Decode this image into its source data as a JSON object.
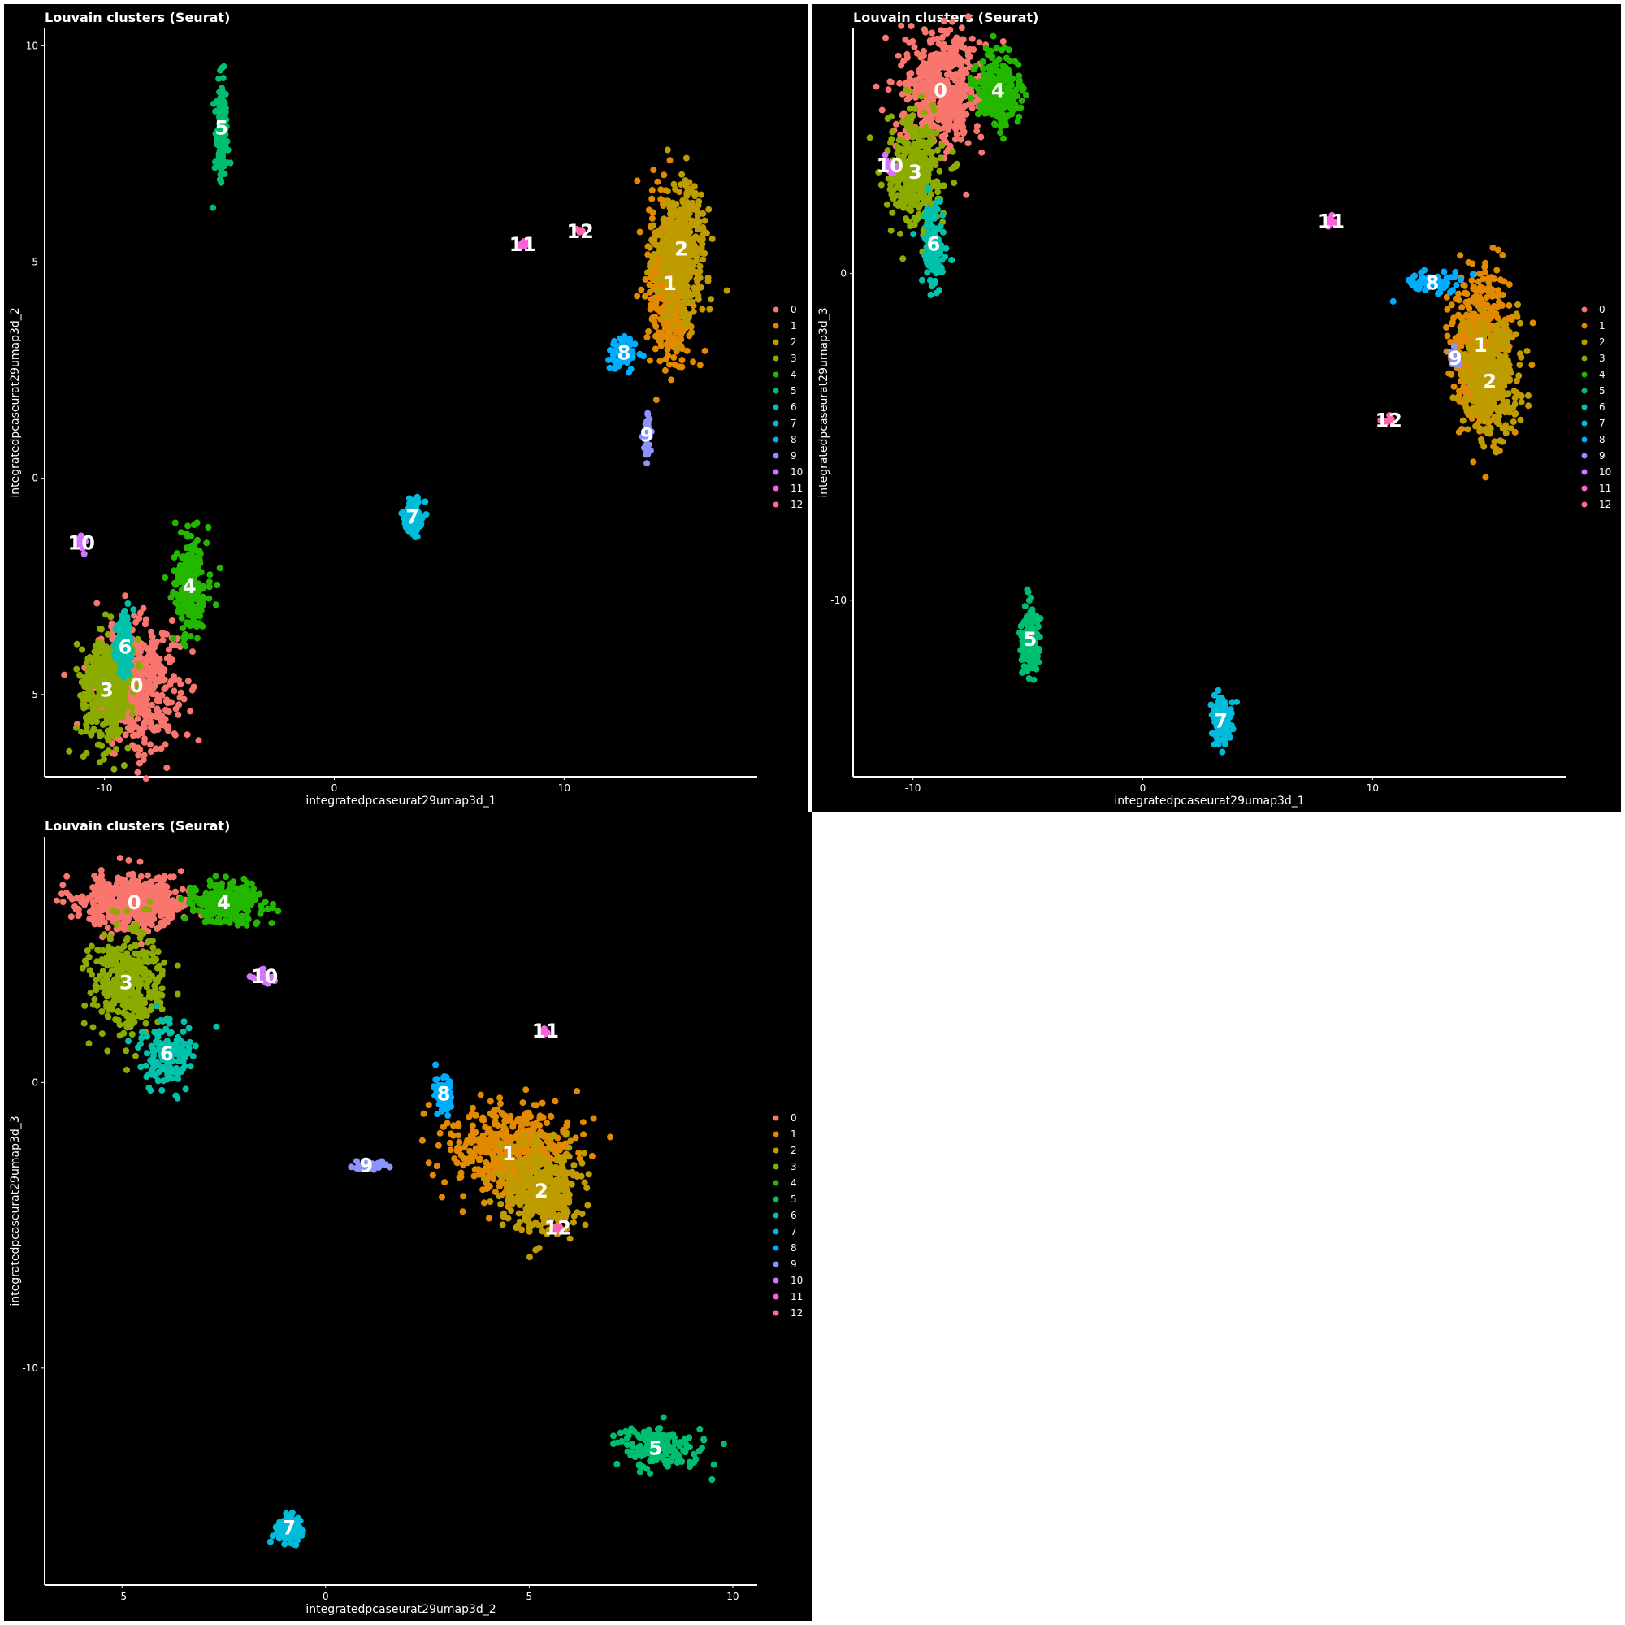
{
  "palette": [
    "#F8766D",
    "#E18A00",
    "#BE9C00",
    "#8CAB00",
    "#24B700",
    "#00BE70",
    "#00C1AB",
    "#00BBDA",
    "#00ACFC",
    "#8B93FF",
    "#D575FE",
    "#F962DD",
    "#FF65AC"
  ],
  "legend": [
    "0",
    "1",
    "2",
    "3",
    "4",
    "5",
    "6",
    "7",
    "8",
    "9",
    "10",
    "11",
    "12"
  ],
  "chart_data": [
    {
      "type": "scatter",
      "title": "Louvain clusters (Seurat)",
      "xlabel": "integratedpcaseurat29umap3d_1",
      "ylabel": "integratedpcaseurat29umap3d_2",
      "xlim": [
        -12.6,
        18.4
      ],
      "ylim": [
        -6.9,
        10.4
      ],
      "xticks": [
        -10,
        0,
        10
      ],
      "xtick_labels": [
        "-10",
        "0",
        "10"
      ],
      "yticks": [
        -5,
        0,
        5,
        10
      ],
      "ytick_labels": [
        "-5",
        "0",
        "5",
        "10"
      ],
      "legend_position": "right",
      "clusters": [
        {
          "label": "0",
          "x": -8.6,
          "y": -4.8
        },
        {
          "label": "1",
          "x": 14.6,
          "y": 4.5
        },
        {
          "label": "2",
          "x": 15.1,
          "y": 5.3
        },
        {
          "label": "3",
          "x": -9.9,
          "y": -4.9
        },
        {
          "label": "4",
          "x": -6.3,
          "y": -2.5
        },
        {
          "label": "5",
          "x": -4.9,
          "y": 8.1
        },
        {
          "label": "6",
          "x": -9.1,
          "y": -3.9
        },
        {
          "label": "7",
          "x": 3.4,
          "y": -0.9
        },
        {
          "label": "8",
          "x": 12.6,
          "y": 2.9
        },
        {
          "label": "9",
          "x": 13.6,
          "y": 1.0
        },
        {
          "label": "10",
          "x": -11.0,
          "y": -1.5
        },
        {
          "label": "11",
          "x": 8.2,
          "y": 5.4
        },
        {
          "label": "12",
          "x": 10.7,
          "y": 5.7
        }
      ]
    },
    {
      "type": "scatter",
      "title": "Louvain clusters (Seurat)",
      "xlabel": "integratedpcaseurat29umap3d_1",
      "ylabel": "integratedpcaseurat29umap3d_3",
      "xlim": [
        -12.6,
        18.4
      ],
      "ylim": [
        -15.4,
        7.5
      ],
      "xticks": [
        -10,
        0,
        10
      ],
      "xtick_labels": [
        "-10",
        "0",
        "10"
      ],
      "yticks": [
        -10,
        0
      ],
      "ytick_labels": [
        "-10",
        "0"
      ],
      "legend_position": "right",
      "clusters": [
        {
          "label": "0",
          "x": -8.8,
          "y": 5.6
        },
        {
          "label": "1",
          "x": 14.7,
          "y": -2.2
        },
        {
          "label": "2",
          "x": 15.1,
          "y": -3.3
        },
        {
          "label": "3",
          "x": -9.9,
          "y": 3.1
        },
        {
          "label": "4",
          "x": -6.3,
          "y": 5.6
        },
        {
          "label": "5",
          "x": -4.9,
          "y": -11.2
        },
        {
          "label": "6",
          "x": -9.1,
          "y": 0.9
        },
        {
          "label": "7",
          "x": 3.4,
          "y": -13.7
        },
        {
          "label": "8",
          "x": 12.6,
          "y": -0.3
        },
        {
          "label": "9",
          "x": 13.6,
          "y": -2.6
        },
        {
          "label": "10",
          "x": -11.0,
          "y": 3.3
        },
        {
          "label": "11",
          "x": 8.2,
          "y": 1.6
        },
        {
          "label": "12",
          "x": 10.7,
          "y": -4.5
        }
      ]
    },
    {
      "type": "scatter",
      "title": "Louvain clusters (Seurat)",
      "xlabel": "integratedpcaseurat29umap3d_2",
      "ylabel": "integratedpcaseurat29umap3d_3",
      "xlim": [
        -6.9,
        10.6
      ],
      "ylim": [
        -17.6,
        8.6
      ],
      "xticks": [
        -5,
        0,
        5,
        10
      ],
      "xtick_labels": [
        "-5",
        "0",
        "5",
        "10"
      ],
      "yticks": [
        -10,
        0
      ],
      "ytick_labels": [
        "-10",
        "0"
      ],
      "legend_position": "right",
      "clusters": [
        {
          "label": "0",
          "x": -4.7,
          "y": 6.3
        },
        {
          "label": "1",
          "x": 4.5,
          "y": -2.5
        },
        {
          "label": "2",
          "x": 5.3,
          "y": -3.8
        },
        {
          "label": "3",
          "x": -4.9,
          "y": 3.5
        },
        {
          "label": "4",
          "x": -2.5,
          "y": 6.3
        },
        {
          "label": "5",
          "x": 8.1,
          "y": -12.8
        },
        {
          "label": "6",
          "x": -3.9,
          "y": 1.0
        },
        {
          "label": "7",
          "x": -0.9,
          "y": -15.6
        },
        {
          "label": "8",
          "x": 2.9,
          "y": -0.4
        },
        {
          "label": "9",
          "x": 1.0,
          "y": -2.9
        },
        {
          "label": "10",
          "x": -1.5,
          "y": 3.7
        },
        {
          "label": "11",
          "x": 5.4,
          "y": 1.8
        },
        {
          "label": "12",
          "x": 5.7,
          "y": -5.1
        }
      ]
    }
  ]
}
